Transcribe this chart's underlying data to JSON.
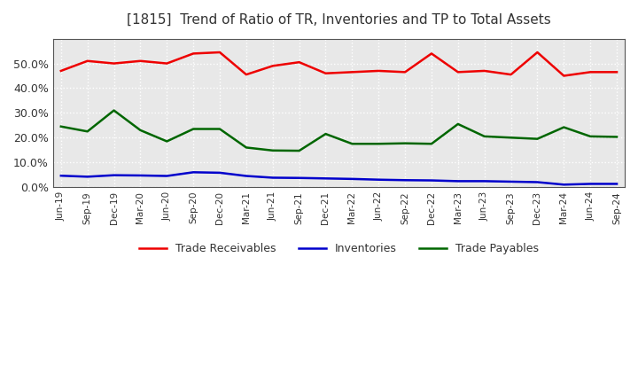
{
  "title": "[1815]  Trend of Ratio of TR, Inventories and TP to Total Assets",
  "labels": [
    "Jun-19",
    "Sep-19",
    "Dec-19",
    "Mar-20",
    "Jun-20",
    "Sep-20",
    "Dec-20",
    "Mar-21",
    "Jun-21",
    "Sep-21",
    "Dec-21",
    "Mar-22",
    "Jun-22",
    "Sep-22",
    "Dec-22",
    "Mar-23",
    "Jun-23",
    "Sep-23",
    "Dec-23",
    "Mar-24",
    "Jun-24",
    "Sep-24"
  ],
  "trade_receivables": [
    0.47,
    0.51,
    0.5,
    0.51,
    0.5,
    0.54,
    0.545,
    0.455,
    0.49,
    0.505,
    0.46,
    0.465,
    0.47,
    0.465,
    0.54,
    0.465,
    0.47,
    0.455,
    0.545,
    0.45,
    0.465,
    0.465
  ],
  "inventories": [
    0.046,
    0.042,
    0.048,
    0.047,
    0.045,
    0.06,
    0.058,
    0.045,
    0.038,
    0.037,
    0.035,
    0.033,
    0.03,
    0.028,
    0.027,
    0.024,
    0.024,
    0.022,
    0.02,
    0.01,
    0.013,
    0.013
  ],
  "trade_payables": [
    0.245,
    0.225,
    0.31,
    0.23,
    0.185,
    0.235,
    0.235,
    0.16,
    0.148,
    0.147,
    0.215,
    0.175,
    0.175,
    0.177,
    0.175,
    0.255,
    0.205,
    0.2,
    0.195,
    0.242,
    0.205,
    0.203
  ],
  "tr_color": "#ee0000",
  "inv_color": "#0000cc",
  "tp_color": "#006600",
  "outer_bg": "#ffffff",
  "plot_bg": "#e8e8e8",
  "grid_color": "#ffffff",
  "title_color": "#333333",
  "ylim": [
    0.0,
    0.6
  ],
  "yticks": [
    0.0,
    0.1,
    0.2,
    0.3,
    0.4,
    0.5
  ],
  "legend_labels": [
    "Trade Receivables",
    "Inventories",
    "Trade Payables"
  ],
  "linewidth": 1.8
}
